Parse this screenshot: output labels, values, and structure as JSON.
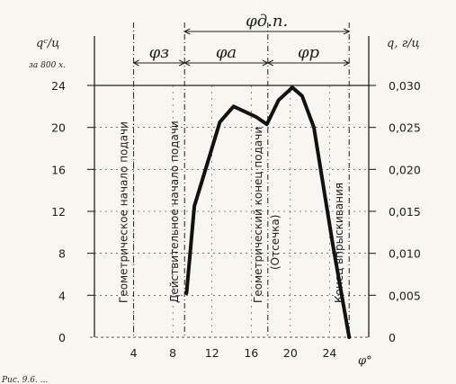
{
  "chart_data": {
    "type": "line",
    "xlabel": "φ°",
    "ylabel_left": "qᶜ/ц",
    "ylabel_left_unit": "за 800 х.",
    "ylabel_right": "q, г/ц",
    "xlim": [
      0,
      28
    ],
    "ylim_left": [
      0,
      24
    ],
    "ylim_right": [
      0,
      0.03
    ],
    "x_ticks": [
      "4",
      "8",
      "12",
      "16",
      "20",
      "24"
    ],
    "y_left_ticks": [
      "0",
      "4",
      "8",
      "12",
      "16",
      "20",
      "24"
    ],
    "y_right_ticks": [
      "0",
      "0,005",
      "0,010",
      "0,015",
      "0,020",
      "0,025",
      "0,030"
    ],
    "series": [
      {
        "x": [
          9.4,
          10.2,
          11.5,
          12.8,
          14.2,
          16.5,
          17.6,
          18.8,
          20.2,
          21.2,
          22.4,
          24.3,
          26.0
        ],
        "y": [
          4.2,
          12.5,
          16.5,
          20.5,
          22.0,
          21.0,
          20.3,
          22.6,
          23.8,
          23.0,
          20.0,
          9.0,
          0
        ]
      }
    ],
    "vertical_markers": [
      {
        "x": 4,
        "label": "Геометрическое начало подачи"
      },
      {
        "x": 9.2,
        "label": "Действительное начало подачи"
      },
      {
        "x": 17.7,
        "label": "Геометрический конец подачи"
      },
      {
        "x": 26.0,
        "label": "Конец впрыскивания"
      }
    ],
    "annotations": [
      {
        "text": "(Отсечка)"
      }
    ],
    "phase_brackets": [
      {
        "label": "φз",
        "from": 4,
        "to": 9.2
      },
      {
        "label": "φa",
        "from": 9.2,
        "to": 17.7
      },
      {
        "label": "φp",
        "from": 17.7,
        "to": 26.0
      },
      {
        "label": "φд.п.",
        "from": 9.2,
        "to": 26.0
      }
    ],
    "grid": true
  },
  "caption": "Рис. 9.6. ..."
}
